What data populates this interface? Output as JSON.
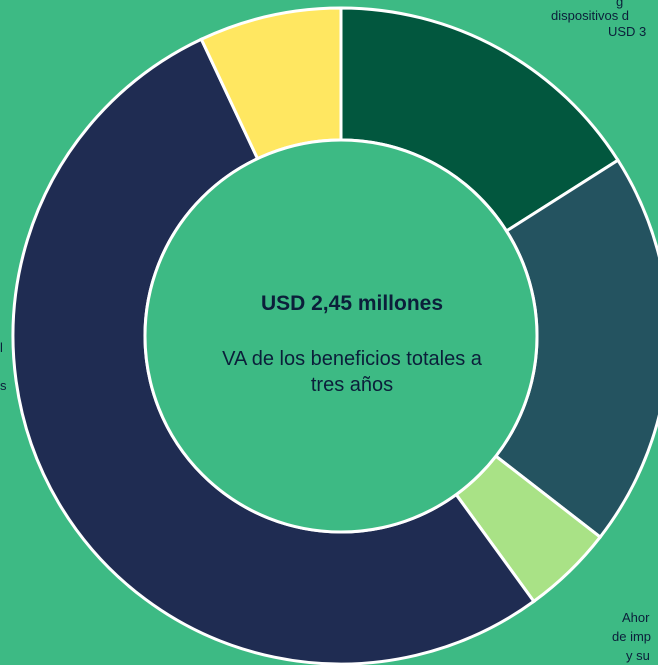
{
  "chart_data": {
    "type": "pie",
    "donut": true,
    "slices": [
      {
        "value": 16,
        "color": "#02573e"
      },
      {
        "value": 19.5,
        "color": "#245360"
      },
      {
        "value": 4.5,
        "color": "#a9e286"
      },
      {
        "value": 53,
        "color": "#1f2c52"
      },
      {
        "value": 7,
        "color": "#ffe761"
      }
    ],
    "center_title": "USD 2,45 millones",
    "center_subtitle": "VA de los beneficios totales a tres años"
  },
  "labels": {
    "top_right_line1": "g",
    "top_right_line2": "dispositivos d",
    "top_right_line3": "USD 3",
    "bottom_right_line1": "Ahor",
    "bottom_right_line2": "de imp",
    "bottom_right_line3": "y su",
    "left_line1": "l",
    "left_line2": "s"
  }
}
